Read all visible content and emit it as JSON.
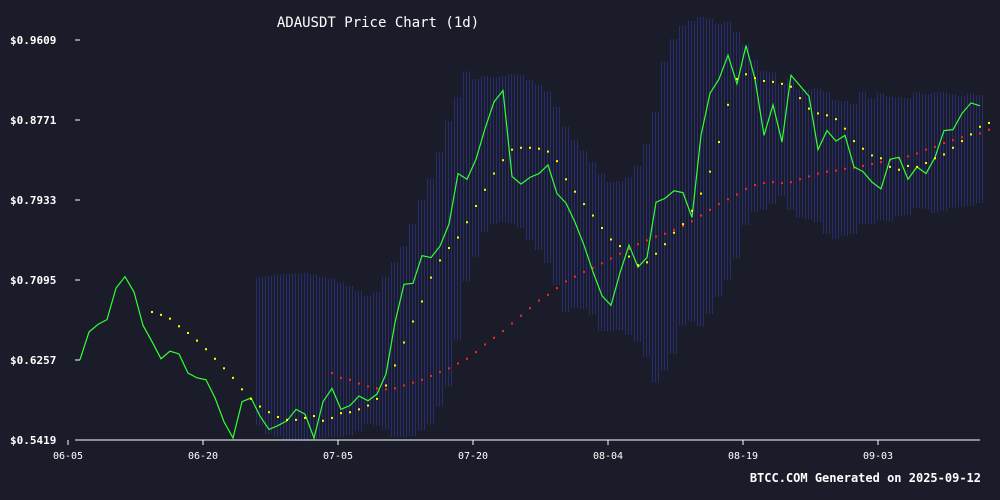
{
  "chart_data": {
    "type": "line",
    "title": "ADAUSDT Price Chart (1d)",
    "footer": "BTCC.COM Generated on 2025-09-12",
    "xlabel": "",
    "ylabel": "",
    "ylim": [
      0.5419,
      0.9609
    ],
    "y_ticks": [
      "$0.9609",
      "$0.8771",
      "$0.7933",
      "$0.7095",
      "$0.6257",
      "$0.5419"
    ],
    "y_tick_values": [
      0.9609,
      0.8771,
      0.7933,
      0.7095,
      0.6257,
      0.5419
    ],
    "x_ticks": [
      "06-05",
      "06-20",
      "07-05",
      "07-20",
      "08-04",
      "08-19",
      "09-03"
    ],
    "x_tick_index": [
      0,
      15,
      30,
      45,
      60,
      75,
      90
    ],
    "colors": {
      "background": "#1a1d29",
      "price": "#33ff33",
      "ma_short": "#ffff00",
      "ma_long": "#ff2222",
      "band": "#2a2f7a",
      "axis": "#ffffff"
    },
    "series": [
      {
        "key": "price",
        "values": [
          0.626,
          0.655,
          0.663,
          0.668,
          0.701,
          0.713,
          0.697,
          0.662,
          0.645,
          0.627,
          0.635,
          0.632,
          0.612,
          0.607,
          0.605,
          0.586,
          0.561,
          0.544,
          0.582,
          0.586,
          0.567,
          0.553,
          0.557,
          0.562,
          0.574,
          0.569,
          0.544,
          0.582,
          0.596,
          0.574,
          0.578,
          0.588,
          0.583,
          0.59,
          0.611,
          0.665,
          0.705,
          0.706,
          0.735,
          0.733,
          0.745,
          0.768,
          0.821,
          0.815,
          0.836,
          0.868,
          0.896,
          0.908,
          0.818,
          0.81,
          0.817,
          0.821,
          0.83,
          0.8,
          0.79,
          0.77,
          0.746,
          0.718,
          0.693,
          0.683,
          0.717,
          0.746,
          0.723,
          0.733,
          0.791,
          0.795,
          0.803,
          0.801,
          0.775,
          0.861,
          0.905,
          0.92,
          0.945,
          0.915,
          0.955,
          0.92,
          0.861,
          0.893,
          0.854,
          0.924,
          0.913,
          0.902,
          0.846,
          0.866,
          0.855,
          0.861,
          0.828,
          0.823,
          0.812,
          0.805,
          0.836,
          0.838,
          0.815,
          0.828,
          0.821,
          0.838,
          0.866,
          0.867,
          0.884,
          0.895,
          0.892
        ]
      },
      {
        "key": "ma_short",
        "start_index": 8,
        "values": [
          0.676,
          0.673,
          0.669,
          0.661,
          0.654,
          0.646,
          0.637,
          0.627,
          0.617,
          0.607,
          0.595,
          0.585,
          0.577,
          0.571,
          0.566,
          0.563,
          0.563,
          0.565,
          0.567,
          0.562,
          0.565,
          0.57,
          0.571,
          0.574,
          0.578,
          0.585,
          0.599,
          0.62,
          0.644,
          0.666,
          0.687,
          0.712,
          0.73,
          0.743,
          0.754,
          0.77,
          0.787,
          0.804,
          0.821,
          0.835,
          0.846,
          0.848,
          0.848,
          0.847,
          0.844,
          0.834,
          0.815,
          0.802,
          0.789,
          0.777,
          0.764,
          0.752,
          0.745,
          0.734,
          0.725,
          0.728,
          0.737,
          0.747,
          0.759,
          0.768,
          0.782,
          0.8,
          0.823,
          0.854,
          0.893,
          0.92,
          0.925,
          0.921,
          0.918,
          0.917,
          0.915,
          0.912,
          0.9,
          0.889,
          0.884,
          0.882,
          0.878,
          0.868,
          0.855,
          0.847,
          0.84,
          0.837,
          0.828,
          0.825,
          0.829,
          0.828,
          0.832,
          0.837,
          0.841,
          0.848,
          0.855,
          0.862,
          0.87,
          0.874
        ]
      },
      {
        "key": "ma_long",
        "start_index": 28,
        "values": [
          0.612,
          0.607,
          0.605,
          0.601,
          0.598,
          0.596,
          0.595,
          0.596,
          0.599,
          0.602,
          0.605,
          0.609,
          0.613,
          0.617,
          0.622,
          0.627,
          0.634,
          0.642,
          0.649,
          0.656,
          0.664,
          0.672,
          0.68,
          0.688,
          0.694,
          0.701,
          0.708,
          0.713,
          0.718,
          0.722,
          0.727,
          0.732,
          0.737,
          0.742,
          0.747,
          0.751,
          0.755,
          0.758,
          0.762,
          0.766,
          0.771,
          0.777,
          0.783,
          0.789,
          0.794,
          0.799,
          0.805,
          0.809,
          0.811,
          0.812,
          0.811,
          0.812,
          0.815,
          0.818,
          0.821,
          0.823,
          0.824,
          0.826,
          0.827,
          0.829,
          0.831,
          0.833,
          0.835,
          0.837,
          0.839,
          0.842,
          0.846,
          0.849,
          0.853,
          0.856,
          0.859,
          0.862,
          0.863,
          0.867
        ]
      }
    ],
    "band": {
      "start_index": 20,
      "upper": [
        0.712,
        0.714,
        0.715,
        0.716,
        0.716,
        0.717,
        0.715,
        0.713,
        0.711,
        0.707,
        0.703,
        0.698,
        0.693,
        0.697,
        0.713,
        0.728,
        0.745,
        0.768,
        0.793,
        0.816,
        0.843,
        0.876,
        0.901,
        0.928,
        0.92,
        0.923,
        0.922,
        0.923,
        0.925,
        0.924,
        0.919,
        0.914,
        0.907,
        0.891,
        0.87,
        0.856,
        0.845,
        0.833,
        0.821,
        0.812,
        0.813,
        0.817,
        0.829,
        0.852,
        0.886,
        0.938,
        0.962,
        0.976,
        0.981,
        0.985,
        0.983,
        0.978,
        0.98,
        0.969,
        0.957,
        0.94,
        0.928,
        0.927,
        0.915,
        0.921,
        0.909,
        0.909,
        0.91,
        0.907,
        0.898,
        0.897,
        0.894,
        0.907,
        0.9,
        0.905,
        0.902,
        0.901,
        0.9,
        0.906,
        0.904,
        0.906,
        0.906,
        0.904,
        0.902,
        0.905,
        0.903
      ],
      "lower": [
        0.557,
        0.548,
        0.545,
        0.542,
        0.542,
        0.541,
        0.543,
        0.544,
        0.545,
        0.545,
        0.547,
        0.551,
        0.559,
        0.557,
        0.553,
        0.545,
        0.545,
        0.546,
        0.552,
        0.559,
        0.577,
        0.598,
        0.646,
        0.708,
        0.734,
        0.76,
        0.768,
        0.77,
        0.769,
        0.764,
        0.751,
        0.741,
        0.727,
        0.704,
        0.676,
        0.68,
        0.679,
        0.673,
        0.656,
        0.656,
        0.657,
        0.652,
        0.645,
        0.629,
        0.602,
        0.615,
        0.632,
        0.662,
        0.666,
        0.661,
        0.674,
        0.692,
        0.71,
        0.732,
        0.767,
        0.781,
        0.783,
        0.789,
        0.797,
        0.783,
        0.775,
        0.773,
        0.77,
        0.758,
        0.752,
        0.756,
        0.758,
        0.768,
        0.768,
        0.772,
        0.771,
        0.776,
        0.777,
        0.785,
        0.784,
        0.78,
        0.782,
        0.785,
        0.786,
        0.787,
        0.79
      ]
    }
  }
}
